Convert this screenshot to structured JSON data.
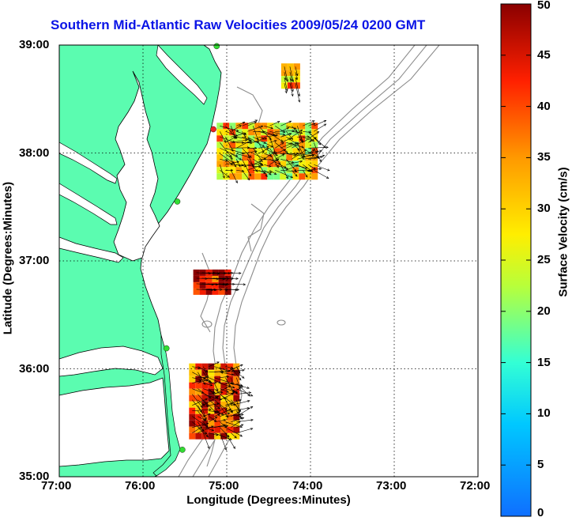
{
  "title": "Southern Mid-Atlantic Raw Velocities 2009/05/24 0200 GMT",
  "axes": {
    "xlabel": "Longitude (Degrees:Minutes)",
    "ylabel": "Latitude (Degrees:Minutes)",
    "x_ticks": [
      "77:00",
      "76:00",
      "75:00",
      "74:00",
      "73:00",
      "72:00"
    ],
    "y_ticks": [
      "39:00",
      "38:00",
      "37:00",
      "36:00",
      "35:00"
    ],
    "xlim": [
      -77,
      -72
    ],
    "ylim": [
      35,
      39
    ]
  },
  "colorbar": {
    "label": "Surface Velocity (cm/s)",
    "ticks": [
      "50",
      "45",
      "40",
      "35",
      "30",
      "25",
      "20",
      "15",
      "10",
      "5",
      "0"
    ],
    "range": [
      0,
      50
    ]
  },
  "colors": {
    "land": "#5bfcb0",
    "title": "#0a14e6",
    "bathymetry": "#8c8c8c",
    "station": "#33dd33",
    "station_alert": "#ee2222"
  },
  "chart_data": {
    "type": "map",
    "grid": true,
    "stations": [
      {
        "lon": -75.12,
        "lat": 38.99,
        "status": "ok"
      },
      {
        "lon": -75.16,
        "lat": 38.22,
        "status": "alert"
      },
      {
        "lon": -75.59,
        "lat": 37.55,
        "status": "ok"
      },
      {
        "lon": -75.72,
        "lat": 36.19,
        "status": "ok"
      },
      {
        "lon": -75.53,
        "lat": 35.25,
        "status": "ok"
      }
    ],
    "velocity_regions": [
      {
        "lon": [
          -74.35,
          -74.13
        ],
        "lat": [
          38.62,
          38.83
        ],
        "speed": 33
      },
      {
        "lon": [
          -75.12,
          -73.92
        ],
        "lat": [
          37.8,
          38.28
        ],
        "speed": 30
      },
      {
        "lon": [
          -75.4,
          -74.95
        ],
        "lat": [
          36.72,
          36.92
        ],
        "speed": 47
      },
      {
        "lon": [
          -75.45,
          -74.85
        ],
        "lat": [
          35.4,
          36.05
        ],
        "speed": 40
      }
    ]
  }
}
